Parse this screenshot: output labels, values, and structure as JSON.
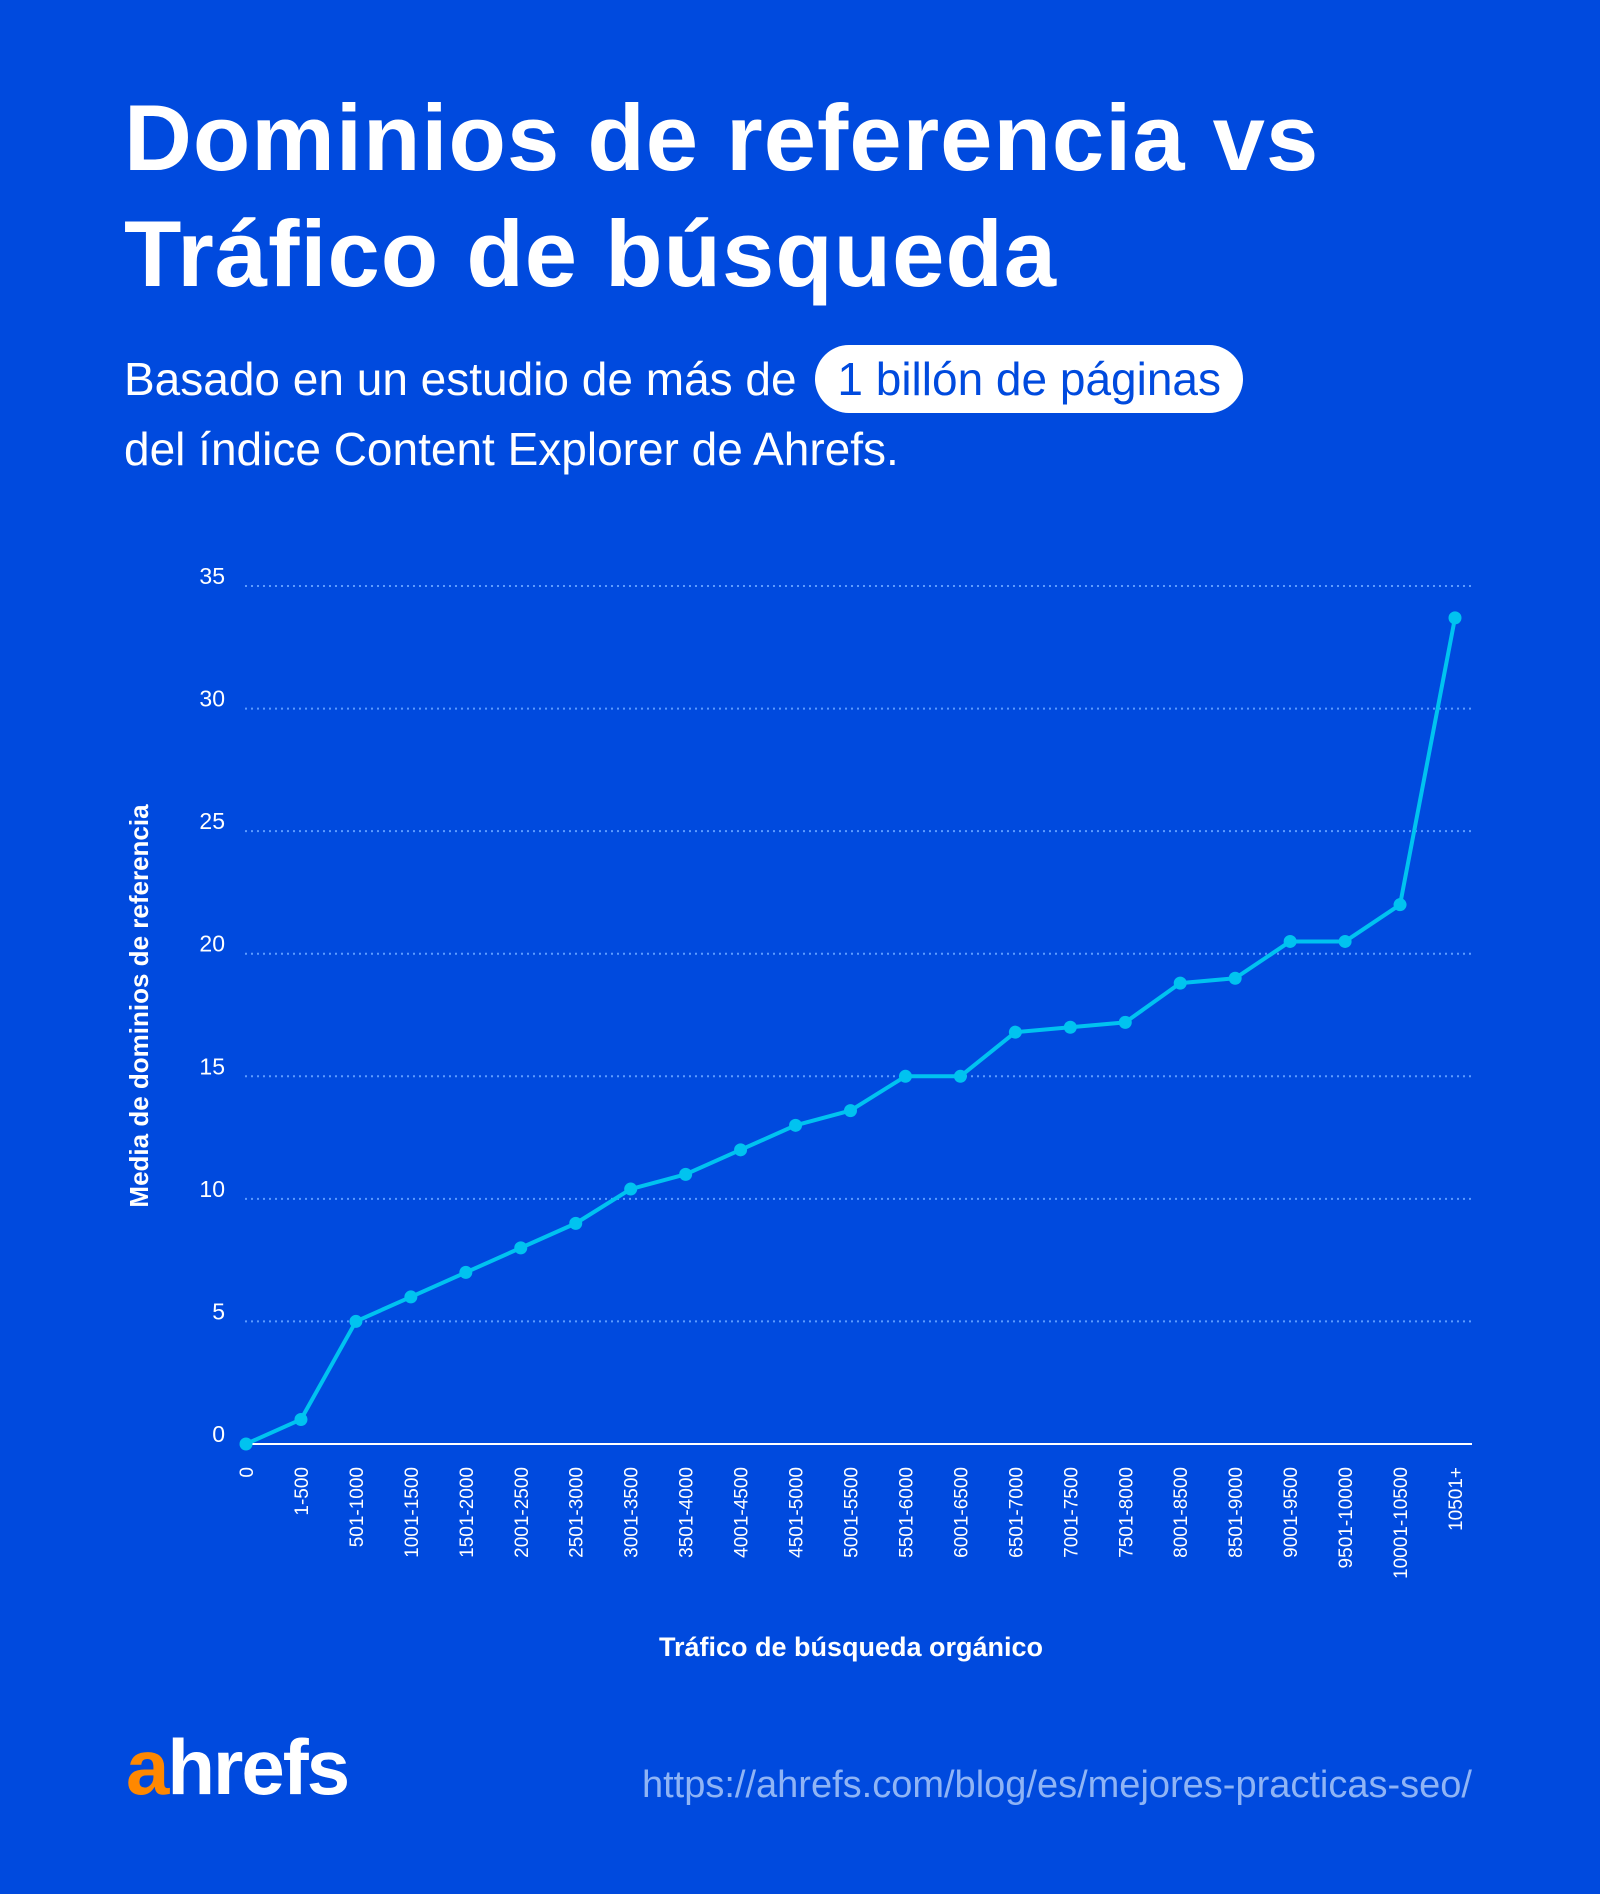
{
  "header": {
    "title_line1": "Dominios de referencia vs",
    "title_line2": "Tráfico de búsqueda",
    "subtitle_pre": "Basado en un estudio de más de",
    "subtitle_highlight": "1 billón de páginas",
    "subtitle_post": "del índice Content Explorer de Ahrefs."
  },
  "chart_data": {
    "type": "line",
    "xlabel": "Tráfico de búsqueda orgánico",
    "ylabel": "Media de dominios de referencia",
    "categories": [
      "0",
      "1-500",
      "501-1000",
      "1001-1500",
      "1501-2000",
      "2001-2500",
      "2501-3000",
      "3001-3500",
      "3501-4000",
      "4001-4500",
      "4501-5000",
      "5001-5500",
      "5501-6000",
      "6001-6500",
      "6501-7000",
      "7001-7500",
      "7501-8000",
      "8001-8500",
      "8501-9000",
      "9001-9500",
      "9501-10000",
      "10001-10500",
      "10501+"
    ],
    "values": [
      0,
      1,
      5,
      6,
      7,
      8,
      9,
      10.4,
      11,
      12,
      13,
      13.6,
      15,
      15,
      16.8,
      17,
      17.2,
      18.8,
      19,
      20.5,
      20.5,
      22,
      33.7
    ],
    "yticks": [
      "0",
      "5",
      "10",
      "15",
      "20",
      "25",
      "30",
      "35"
    ],
    "ylim": [
      0,
      35
    ],
    "grid": true,
    "line_color": "#00C3F0"
  },
  "footer": {
    "logo_a": "a",
    "logo_rest": "hrefs",
    "url": "https://ahrefs.com/blog/es/mejores-practicas-seo/"
  },
  "colors": {
    "background": "#004ADE",
    "accent": "#FF8800"
  }
}
